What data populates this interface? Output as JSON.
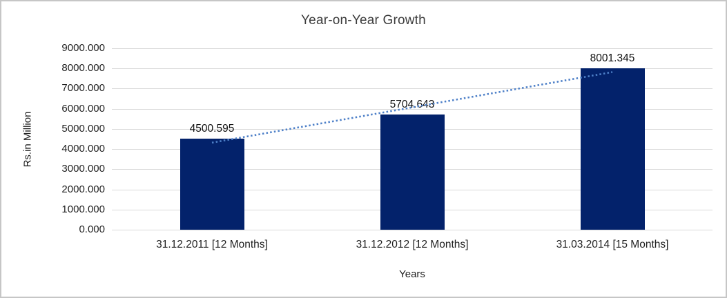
{
  "chart_data": {
    "type": "bar",
    "title": "Year-on-Year Growth",
    "xlabel": "Years",
    "ylabel": "Rs.in Million",
    "categories": [
      "31.12.2011 [12 Months]",
      "31.12.2012 [12 Months]",
      "31.03.2014 [15 Months]"
    ],
    "values": [
      4500.595,
      5704.643,
      8001.345
    ],
    "data_labels": [
      "4500.595",
      "5704.643",
      "8001.345"
    ],
    "ylim": [
      0,
      9000
    ],
    "ytick_step": 1000,
    "ytick_labels": [
      "0.000",
      "1000.000",
      "2000.000",
      "3000.000",
      "4000.000",
      "5000.000",
      "6000.000",
      "7000.000",
      "8000.000",
      "9000.000"
    ],
    "grid": true,
    "legend": "none",
    "trendline": {
      "type": "linear",
      "style": "dotted"
    },
    "colors": {
      "bar": "#03226b",
      "trendline": "#4e80c8",
      "gridline": "#d9d9d9",
      "text": "#1f1f1f",
      "frame_border": "#c6c6c6"
    }
  }
}
